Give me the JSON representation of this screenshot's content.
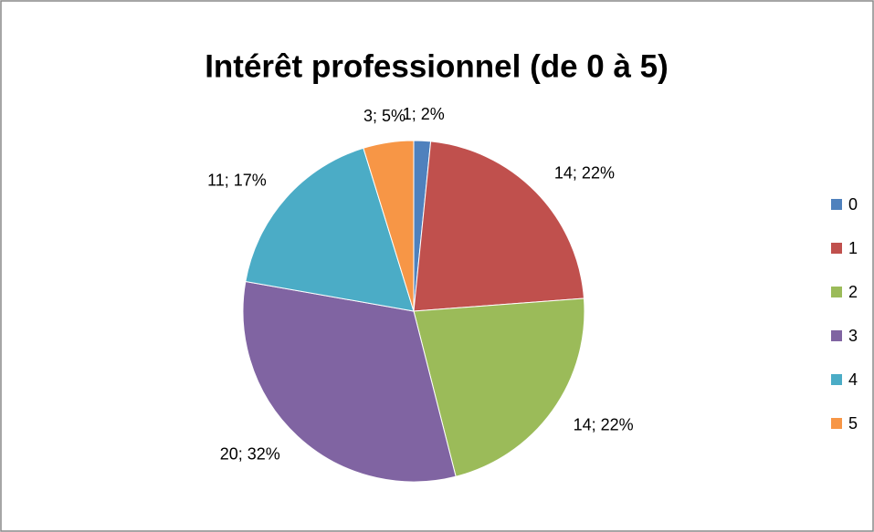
{
  "chart_data": {
    "type": "pie",
    "title": "Intérêt professionnel (de 0 à 5)",
    "categories": [
      "0",
      "1",
      "2",
      "3",
      "4",
      "5"
    ],
    "values": [
      1,
      14,
      14,
      20,
      11,
      3
    ],
    "value_labels": [
      "1; 2%",
      "14; 22%",
      "14; 22%",
      "20; 32%",
      "11; 17%",
      "3; 5%"
    ],
    "colors": [
      "#4f81bd",
      "#c0504d",
      "#9bbb59",
      "#8064a2",
      "#4bacc6",
      "#f79646"
    ],
    "legend": "right"
  }
}
